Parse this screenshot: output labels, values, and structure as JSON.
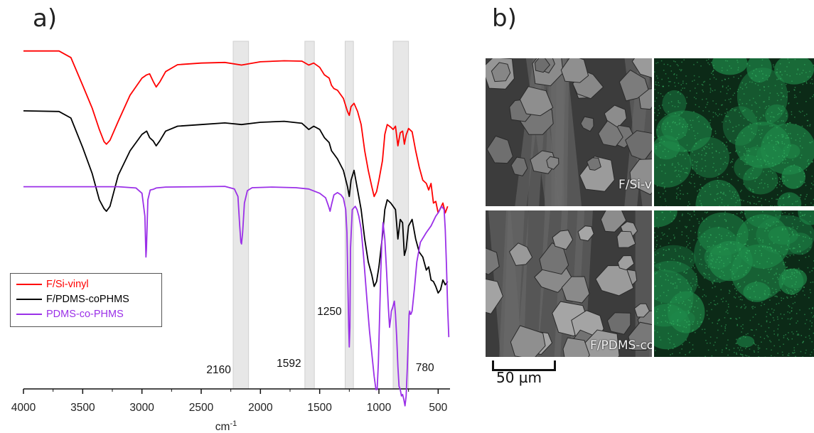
{
  "panels": {
    "a_label": "a)",
    "b_label": "b)"
  },
  "chart_data": {
    "type": "line",
    "title": "",
    "xlabel": "cm-1",
    "xlabel_main": "cm",
    "xlabel_sup": "-1",
    "ylabel": "",
    "xlim": [
      4000,
      400
    ],
    "x_reversed": true,
    "xticks": [
      4000,
      3500,
      3000,
      2500,
      2000,
      1500,
      1000,
      500
    ],
    "grid": false,
    "legend_position": "bottom-left",
    "highlight_bands": [
      {
        "from": 2230,
        "to": 2100
      },
      {
        "from": 1625,
        "to": 1545
      },
      {
        "from": 1285,
        "to": 1215
      },
      {
        "from": 880,
        "to": 750
      }
    ],
    "annotations": [
      {
        "text": "2160",
        "x": 2160
      },
      {
        "text": "1592",
        "x": 1592
      },
      {
        "text": "1250",
        "x": 1250
      },
      {
        "text": "780",
        "x": 780
      }
    ],
    "series": [
      {
        "name": "F/Si-vinyl",
        "color": "#ff0000",
        "x": [
          4000,
          3700,
          3600,
          3500,
          3420,
          3360,
          3320,
          3300,
          3270,
          3200,
          3100,
          3000,
          2960,
          2935,
          2905,
          2880,
          2850,
          2800,
          2700,
          2500,
          2300,
          2160,
          2000,
          1800,
          1650,
          1592,
          1550,
          1500,
          1460,
          1420,
          1400,
          1380,
          1350,
          1300,
          1265,
          1250,
          1235,
          1210,
          1180,
          1150,
          1120,
          1090,
          1060,
          1040,
          1020,
          1000,
          970,
          950,
          930,
          900,
          880,
          860,
          840,
          820,
          800,
          785,
          770,
          750,
          720,
          690,
          660,
          630,
          600,
          580,
          560,
          540,
          520,
          500,
          480,
          460,
          440,
          420
        ],
        "y": [
          0.905,
          0.905,
          0.885,
          0.8,
          0.73,
          0.665,
          0.628,
          0.62,
          0.632,
          0.69,
          0.77,
          0.822,
          0.832,
          0.835,
          0.812,
          0.795,
          0.81,
          0.842,
          0.863,
          0.868,
          0.87,
          0.862,
          0.872,
          0.875,
          0.874,
          0.862,
          0.868,
          0.855,
          0.832,
          0.822,
          0.8,
          0.79,
          0.785,
          0.76,
          0.72,
          0.708,
          0.735,
          0.745,
          0.72,
          0.68,
          0.6,
          0.54,
          0.49,
          0.46,
          0.475,
          0.51,
          0.57,
          0.65,
          0.68,
          0.672,
          0.665,
          0.675,
          0.615,
          0.655,
          0.66,
          0.62,
          0.648,
          0.668,
          0.658,
          0.6,
          0.55,
          0.51,
          0.5,
          0.48,
          0.5,
          0.44,
          0.445,
          0.41,
          0.425,
          0.44,
          0.41,
          0.43
        ]
      },
      {
        "name": "F/PDMS-coPHMS",
        "color": "#000000",
        "x": [
          4000,
          3700,
          3600,
          3500,
          3420,
          3360,
          3320,
          3300,
          3270,
          3200,
          3100,
          3000,
          2960,
          2935,
          2905,
          2880,
          2850,
          2800,
          2700,
          2500,
          2300,
          2160,
          2000,
          1800,
          1650,
          1592,
          1550,
          1500,
          1460,
          1420,
          1400,
          1380,
          1350,
          1300,
          1265,
          1250,
          1235,
          1210,
          1180,
          1150,
          1120,
          1090,
          1060,
          1040,
          1020,
          1000,
          970,
          950,
          930,
          900,
          880,
          860,
          840,
          820,
          800,
          785,
          770,
          750,
          720,
          690,
          660,
          630,
          600,
          580,
          560,
          540,
          520,
          500,
          480,
          460,
          440,
          420
        ],
        "y": [
          0.722,
          0.72,
          0.7,
          0.61,
          0.53,
          0.45,
          0.423,
          0.415,
          0.43,
          0.525,
          0.6,
          0.65,
          0.66,
          0.64,
          0.63,
          0.615,
          0.63,
          0.66,
          0.675,
          0.68,
          0.685,
          0.68,
          0.687,
          0.69,
          0.684,
          0.665,
          0.675,
          0.665,
          0.64,
          0.625,
          0.6,
          0.59,
          0.575,
          0.54,
          0.49,
          0.46,
          0.51,
          0.54,
          0.48,
          0.42,
          0.33,
          0.26,
          0.22,
          0.185,
          0.2,
          0.245,
          0.34,
          0.42,
          0.45,
          0.44,
          0.43,
          0.42,
          0.33,
          0.39,
          0.38,
          0.28,
          0.3,
          0.37,
          0.39,
          0.33,
          0.29,
          0.275,
          0.235,
          0.245,
          0.205,
          0.2,
          0.185,
          0.165,
          0.175,
          0.205,
          0.19,
          0.2
        ]
      },
      {
        "name": "PDMS-co-PHMS",
        "color": "#9b30e8",
        "x": [
          4000,
          3500,
          3200,
          3050,
          3000,
          2975,
          2966,
          2962,
          2950,
          2930,
          2905,
          2880,
          2800,
          2500,
          2300,
          2220,
          2190,
          2175,
          2165,
          2160,
          2150,
          2135,
          2110,
          2070,
          1900,
          1700,
          1592,
          1500,
          1450,
          1425,
          1412,
          1400,
          1380,
          1350,
          1320,
          1300,
          1280,
          1270,
          1262,
          1255,
          1250,
          1245,
          1240,
          1225,
          1200,
          1185,
          1170,
          1150,
          1130,
          1100,
          1080,
          1060,
          1040,
          1025,
          1015,
          1005,
          995,
          985,
          975,
          965,
          950,
          935,
          920,
          910,
          900,
          895,
          885,
          870,
          860,
          850,
          840,
          830,
          820,
          810,
          800,
          790,
          780,
          770,
          760,
          750,
          745,
          740,
          735,
          730,
          720,
          700,
          680,
          650,
          600,
          560,
          520,
          500,
          470,
          450,
          440,
          430,
          420,
          410
        ],
        "y": [
          0.49,
          0.49,
          0.49,
          0.486,
          0.47,
          0.4,
          0.275,
          0.3,
          0.45,
          0.48,
          0.482,
          0.486,
          0.489,
          0.49,
          0.491,
          0.483,
          0.46,
          0.37,
          0.32,
          0.315,
          0.35,
          0.44,
          0.478,
          0.487,
          0.489,
          0.487,
          0.483,
          0.47,
          0.456,
          0.43,
          0.415,
          0.435,
          0.465,
          0.472,
          0.465,
          0.455,
          0.42,
          0.35,
          0.2,
          0.06,
          0.0,
          0.06,
          0.3,
          0.42,
          0.43,
          0.42,
          0.4,
          0.36,
          0.28,
          0.14,
          0.05,
          -0.02,
          -0.09,
          -0.13,
          -0.13,
          -0.05,
          0.08,
          0.22,
          0.33,
          0.38,
          0.33,
          0.23,
          0.12,
          0.06,
          0.09,
          0.11,
          0.12,
          0.14,
          0.1,
          0.03,
          -0.06,
          -0.12,
          -0.13,
          -0.15,
          -0.145,
          -0.16,
          -0.18,
          -0.15,
          -0.06,
          0.05,
          0.1,
          0.11,
          0.1,
          0.1,
          0.11,
          0.18,
          0.26,
          0.32,
          0.35,
          0.37,
          0.4,
          0.41,
          0.43,
          0.42,
          0.36,
          0.25,
          0.12,
          0.03
        ]
      }
    ]
  },
  "micrographs": {
    "tiles": [
      {
        "label": "F/Si-vinyl",
        "kind": "sem"
      },
      {
        "label": "",
        "kind": "eds"
      },
      {
        "label": "F/PDMS-co-PHMS",
        "kind": "sem"
      },
      {
        "label": "",
        "kind": "eds"
      }
    ],
    "scale_bar_label": "50 µm"
  },
  "colors": {
    "band": "#e3e3e3",
    "band_border": "#c8c8c8",
    "eds_green": "#1f8a4a",
    "sem_gray": "#5a5a5a"
  }
}
